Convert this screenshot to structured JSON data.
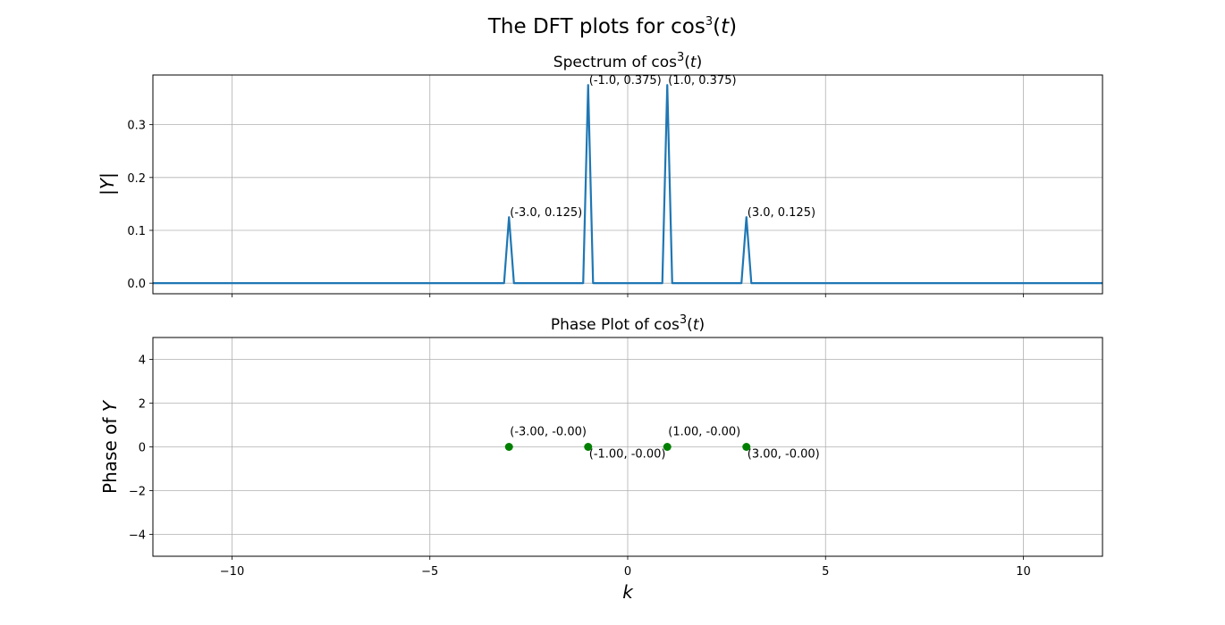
{
  "figure": {
    "suptitle": {
      "prefix": "The DFT plots for cos",
      "sup": "3",
      "arg": "(",
      "var": "t",
      "close": ")"
    }
  },
  "chart_data": [
    {
      "type": "line",
      "title": {
        "prefix": "Spectrum of cos",
        "sup": "3",
        "arg": "(",
        "var": "t",
        "close": ")"
      },
      "xlabel": "",
      "ylabel": "|Y|",
      "xlim": [
        -12,
        12
      ],
      "ylim": [
        -0.02,
        0.394
      ],
      "xticks": [
        -10,
        -5,
        0,
        5,
        10
      ],
      "yticks": [
        0.0,
        0.1,
        0.2,
        0.3
      ],
      "ytick_labels": [
        "0.0",
        "0.1",
        "0.2",
        "0.3"
      ],
      "grid": true,
      "color": "#1f77b4",
      "sample_spacing": 0.125,
      "peaks": [
        {
          "x": -3.0,
          "y": 0.125,
          "label": "(-3.0, 0.125)"
        },
        {
          "x": -1.0,
          "y": 0.375,
          "label": "(-1.0, 0.375)"
        },
        {
          "x": 1.0,
          "y": 0.375,
          "label": "(1.0, 0.375)"
        },
        {
          "x": 3.0,
          "y": 0.125,
          "label": "(3.0, 0.125)"
        }
      ]
    },
    {
      "type": "scatter",
      "title": {
        "prefix": "Phase Plot of cos",
        "sup": "3",
        "arg": "(",
        "var": "t",
        "close": ")"
      },
      "xlabel": "k",
      "ylabel": {
        "prefix": "Phase of ",
        "var": "Y"
      },
      "xlim": [
        -12,
        12
      ],
      "ylim": [
        -5,
        5
      ],
      "xticks": [
        -10,
        -5,
        0,
        5,
        10
      ],
      "xtick_labels": [
        "−10",
        "−5",
        "0",
        "5",
        "10"
      ],
      "yticks": [
        -4,
        -2,
        0,
        2,
        4
      ],
      "ytick_labels": [
        "−4",
        "−2",
        "0",
        "2",
        "4"
      ],
      "grid": true,
      "color": "#008000",
      "points": [
        {
          "x": -3.0,
          "y": 0.0,
          "label": "(-3.00, -0.00)",
          "label_side": "above"
        },
        {
          "x": -1.0,
          "y": 0.0,
          "label": "(-1.00, -0.00)",
          "label_side": "below"
        },
        {
          "x": 1.0,
          "y": 0.0,
          "label": "(1.00, -0.00)",
          "label_side": "above"
        },
        {
          "x": 3.0,
          "y": 0.0,
          "label": "(3.00, -0.00)",
          "label_side": "below"
        }
      ]
    }
  ]
}
